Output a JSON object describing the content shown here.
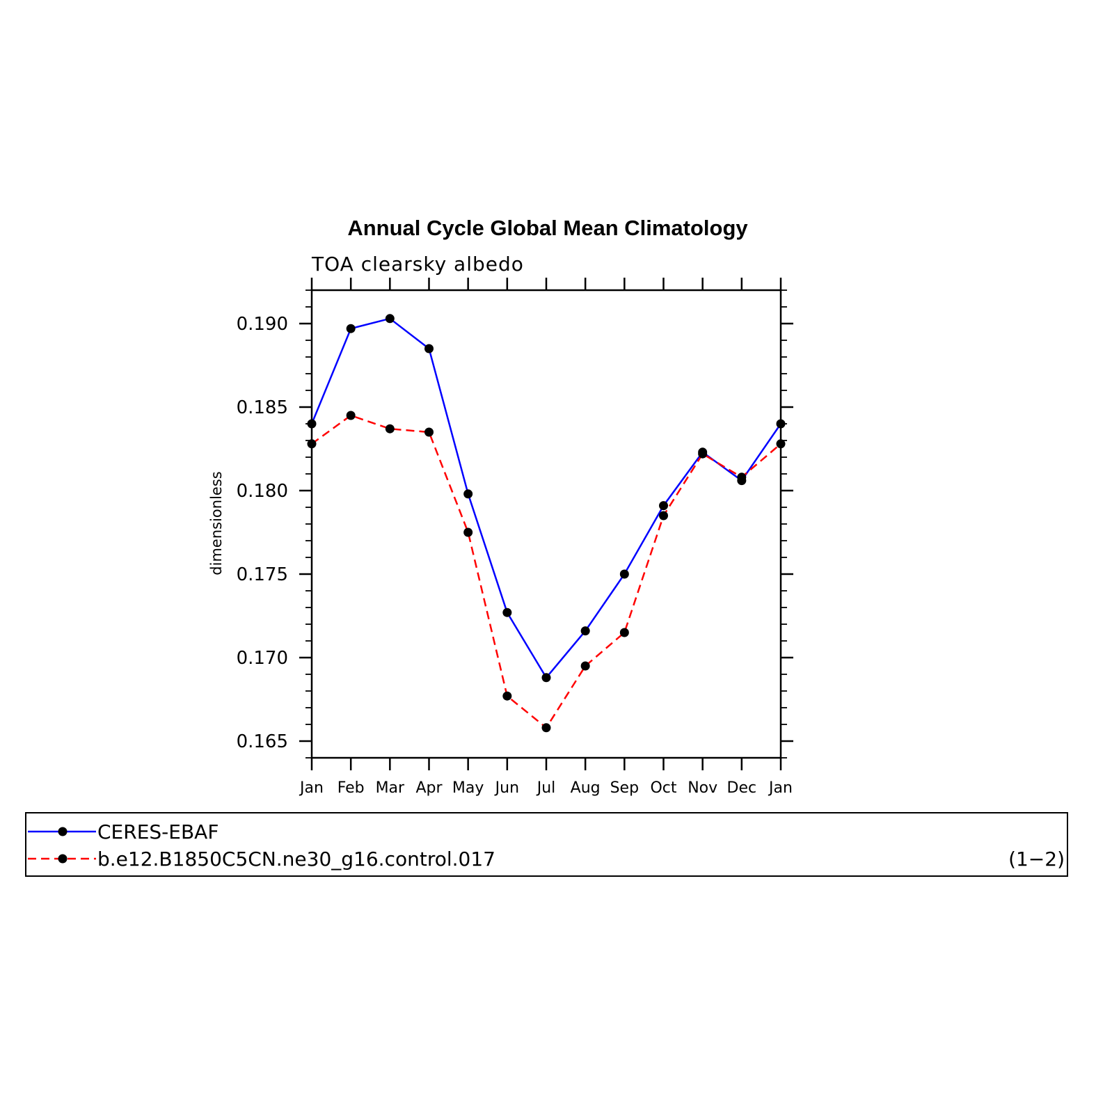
{
  "chart_data": {
    "type": "line",
    "title": "Annual Cycle Global Mean Climatology",
    "subtitle": "TOA clearsky albedo",
    "xlabel": "",
    "ylabel": "dimensionless",
    "categories": [
      "Jan",
      "Feb",
      "Mar",
      "Apr",
      "May",
      "Jun",
      "Jul",
      "Aug",
      "Sep",
      "Oct",
      "Nov",
      "Dec",
      "Jan"
    ],
    "ylim": [
      0.164,
      0.192
    ],
    "yticks": [
      0.165,
      0.17,
      0.175,
      0.18,
      0.185,
      0.19
    ],
    "ytick_labels": [
      "0.165",
      "0.170",
      "0.175",
      "0.180",
      "0.185",
      "0.190"
    ],
    "series": [
      {
        "name": "CERES-EBAF",
        "color": "#0000ff",
        "dash": "solid",
        "values": [
          0.184,
          0.1897,
          0.1903,
          0.1885,
          0.1798,
          0.1727,
          0.1688,
          0.1716,
          0.175,
          0.1791,
          0.1823,
          0.1806,
          0.184
        ]
      },
      {
        "name": "b.e12.B1850C5CN.ne30_g16.control.017",
        "color": "#ff0000",
        "dash": "dashed",
        "values": [
          0.1828,
          0.1845,
          0.1837,
          0.1835,
          0.1775,
          0.1677,
          0.1658,
          0.1695,
          0.1715,
          0.1785,
          0.1822,
          0.1808,
          0.1828
        ]
      }
    ],
    "legend_position": "bottom",
    "legend_note": "(1−2)",
    "grid": false
  }
}
